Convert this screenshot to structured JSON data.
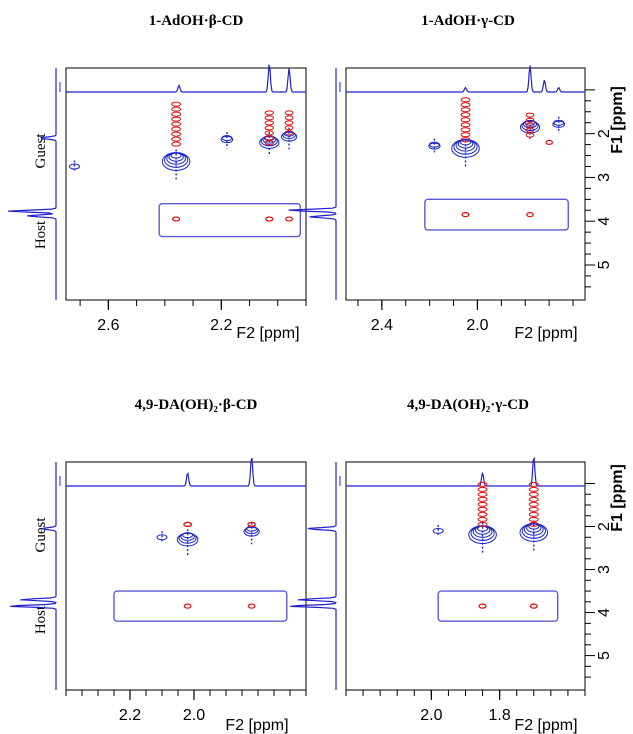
{
  "figure": {
    "panel_titles": [
      "1-AdOH·β-CD",
      "1-AdOH·γ-CD",
      "4,9-DA(OH)₂·β-CD",
      "4,9-DA(OH)₂·γ-CD"
    ],
    "side_labels": {
      "guest": "Guest",
      "host": "Host"
    },
    "f1_axis_title": "F1 [ppm]",
    "f2_axis_title": "F2 [ppm]",
    "colors": {
      "axis": "#000000",
      "frame": "#5b5bd6",
      "positive_contour": "#e01010",
      "negative_contour": "#1a28c8",
      "projection": "#2222cc"
    }
  },
  "chart_data": [
    {
      "type": "2D NMR contour (ROESY)",
      "title": "1-AdOH·β-CD",
      "xlabel": "F2 [ppm]",
      "ylabel": "F1 [ppm]",
      "x_ticks": [
        "2.6",
        "2.2"
      ],
      "y_ticks": [],
      "x_reversed": true,
      "xlim": [
        2.75,
        1.9
      ],
      "ylim": [
        0.5,
        5.8
      ],
      "f2_projection_peaks": [
        {
          "ppm": 2.35,
          "height": 0.22
        },
        {
          "ppm": 2.03,
          "height": 0.95
        },
        {
          "ppm": 1.96,
          "height": 0.8
        }
      ],
      "f1_projection_peaks": [
        {
          "ppm": 2.1,
          "height": 0.35
        },
        {
          "ppm": 3.77,
          "height": 1.0
        },
        {
          "ppm": 3.88,
          "height": 0.6
        }
      ],
      "diagonal_peaks": [
        {
          "f2": 2.36,
          "f1": 2.5,
          "extent": 1.0
        },
        {
          "f2": 2.18,
          "f1": 2.1,
          "extent": 0.4
        },
        {
          "f2": 2.03,
          "f1": 2.1,
          "extent": 0.7
        },
        {
          "f2": 1.96,
          "f1": 2.0,
          "extent": 0.6
        },
        {
          "f2": 2.72,
          "f1": 2.75,
          "extent": 0.2
        }
      ],
      "cross_peaks": [
        {
          "f2": 2.36,
          "f1": 1.6,
          "extent": 1.0
        },
        {
          "f2": 2.03,
          "f1": 1.8,
          "extent": 0.8
        },
        {
          "f2": 1.96,
          "f1": 1.8,
          "extent": 0.6
        },
        {
          "f2": 2.36,
          "f1": 3.95,
          "extent": 0.3
        },
        {
          "f2": 2.03,
          "f1": 3.95,
          "extent": 0.3
        },
        {
          "f2": 1.96,
          "f1": 3.95,
          "extent": 0.25
        }
      ],
      "highlight_box": {
        "f2_from": 2.42,
        "f2_to": 1.92,
        "f1_from": 3.6,
        "f1_to": 4.35
      }
    },
    {
      "type": "2D NMR contour (ROESY)",
      "title": "1-AdOH·γ-CD",
      "xlabel": "F2 [ppm]",
      "ylabel": "F1 [ppm]",
      "x_ticks": [
        "2.4",
        "2.0"
      ],
      "y_ticks": [
        "1",
        "2",
        "3",
        "4",
        "5"
      ],
      "x_reversed": true,
      "xlim": [
        2.55,
        1.55
      ],
      "ylim": [
        0.5,
        5.8
      ],
      "f2_projection_peaks": [
        {
          "ppm": 2.05,
          "height": 0.15
        },
        {
          "ppm": 1.78,
          "height": 0.9
        },
        {
          "ppm": 1.72,
          "height": 0.4
        },
        {
          "ppm": 1.66,
          "height": 0.15
        }
      ],
      "f1_projection_peaks": [
        {
          "ppm": 3.75,
          "height": 1.0
        },
        {
          "ppm": 3.9,
          "height": 0.55
        }
      ],
      "diagonal_peaks": [
        {
          "f2": 2.05,
          "f1": 2.2,
          "extent": 1.0
        },
        {
          "f2": 2.18,
          "f1": 2.25,
          "extent": 0.3
        },
        {
          "f2": 1.78,
          "f1": 1.75,
          "extent": 0.7
        },
        {
          "f2": 1.66,
          "f1": 1.75,
          "extent": 0.4
        }
      ],
      "cross_peaks": [
        {
          "f2": 2.05,
          "f1": 1.5,
          "extent": 1.0
        },
        {
          "f2": 1.78,
          "f1": 1.85,
          "extent": 0.6
        },
        {
          "f2": 1.7,
          "f1": 2.2,
          "extent": 0.2
        },
        {
          "f2": 2.05,
          "f1": 3.85,
          "extent": 0.3
        },
        {
          "f2": 1.78,
          "f1": 3.85,
          "extent": 0.2
        }
      ],
      "highlight_box": {
        "f2_from": 2.22,
        "f2_to": 1.62,
        "f1_from": 3.5,
        "f1_to": 4.2
      }
    },
    {
      "type": "2D NMR contour (ROESY)",
      "title": "4,9-DA(OH)₂·β-CD",
      "xlabel": "F2 [ppm]",
      "ylabel": "F1 [ppm]",
      "x_ticks": [
        "2.2",
        "2.0"
      ],
      "y_ticks": [],
      "x_reversed": true,
      "xlim": [
        2.4,
        1.65
      ],
      "ylim": [
        0.5,
        5.8
      ],
      "f2_projection_peaks": [
        {
          "ppm": 2.02,
          "height": 0.45
        },
        {
          "ppm": 1.82,
          "height": 1.0
        }
      ],
      "f1_projection_peaks": [
        {
          "ppm": 2.05,
          "height": 0.3
        },
        {
          "ppm": 3.7,
          "height": 0.75
        },
        {
          "ppm": 3.85,
          "height": 1.0
        }
      ],
      "diagonal_peaks": [
        {
          "f2": 2.02,
          "f1": 2.2,
          "extent": 0.8
        },
        {
          "f2": 2.1,
          "f1": 2.25,
          "extent": 0.2
        },
        {
          "f2": 1.82,
          "f1": 2.05,
          "extent": 0.6
        }
      ],
      "cross_peaks": [
        {
          "f2": 2.02,
          "f1": 1.95,
          "extent": 0.5
        },
        {
          "f2": 1.82,
          "f1": 1.95,
          "extent": 0.4
        },
        {
          "f2": 2.02,
          "f1": 3.85,
          "extent": 0.25
        },
        {
          "f2": 1.82,
          "f1": 3.85,
          "extent": 0.25
        }
      ],
      "highlight_box": {
        "f2_from": 2.25,
        "f2_to": 1.71,
        "f1_from": 3.5,
        "f1_to": 4.2
      }
    },
    {
      "type": "2D NMR contour (ROESY)",
      "title": "4,9-DA(OH)₂·γ-CD",
      "xlabel": "F2 [ppm]",
      "ylabel": "F1 [ppm]",
      "x_ticks": [
        "2.0",
        "1.8"
      ],
      "y_ticks": [
        "1",
        "2",
        "3",
        "4",
        "5"
      ],
      "x_reversed": true,
      "xlim": [
        2.25,
        1.55
      ],
      "ylim": [
        0.5,
        5.8
      ],
      "f2_projection_peaks": [
        {
          "ppm": 1.85,
          "height": 0.45
        },
        {
          "ppm": 1.7,
          "height": 1.0
        }
      ],
      "f1_projection_peaks": [
        {
          "ppm": 2.05,
          "height": 0.6
        },
        {
          "ppm": 3.7,
          "height": 0.8
        },
        {
          "ppm": 3.85,
          "height": 1.0
        }
      ],
      "diagonal_peaks": [
        {
          "f2": 1.85,
          "f1": 2.05,
          "extent": 1.0
        },
        {
          "f2": 1.7,
          "f1": 2.0,
          "extent": 1.0
        },
        {
          "f2": 1.98,
          "f1": 2.1,
          "extent": 0.2
        }
      ],
      "cross_peaks": [
        {
          "f2": 1.85,
          "f1": 1.3,
          "extent": 1.0
        },
        {
          "f2": 1.7,
          "f1": 1.3,
          "extent": 1.0
        },
        {
          "f2": 1.85,
          "f1": 3.85,
          "extent": 0.3
        },
        {
          "f2": 1.7,
          "f1": 3.85,
          "extent": 0.3
        }
      ],
      "highlight_box": {
        "f2_from": 1.98,
        "f2_to": 1.63,
        "f1_from": 3.5,
        "f1_to": 4.2
      }
    }
  ]
}
